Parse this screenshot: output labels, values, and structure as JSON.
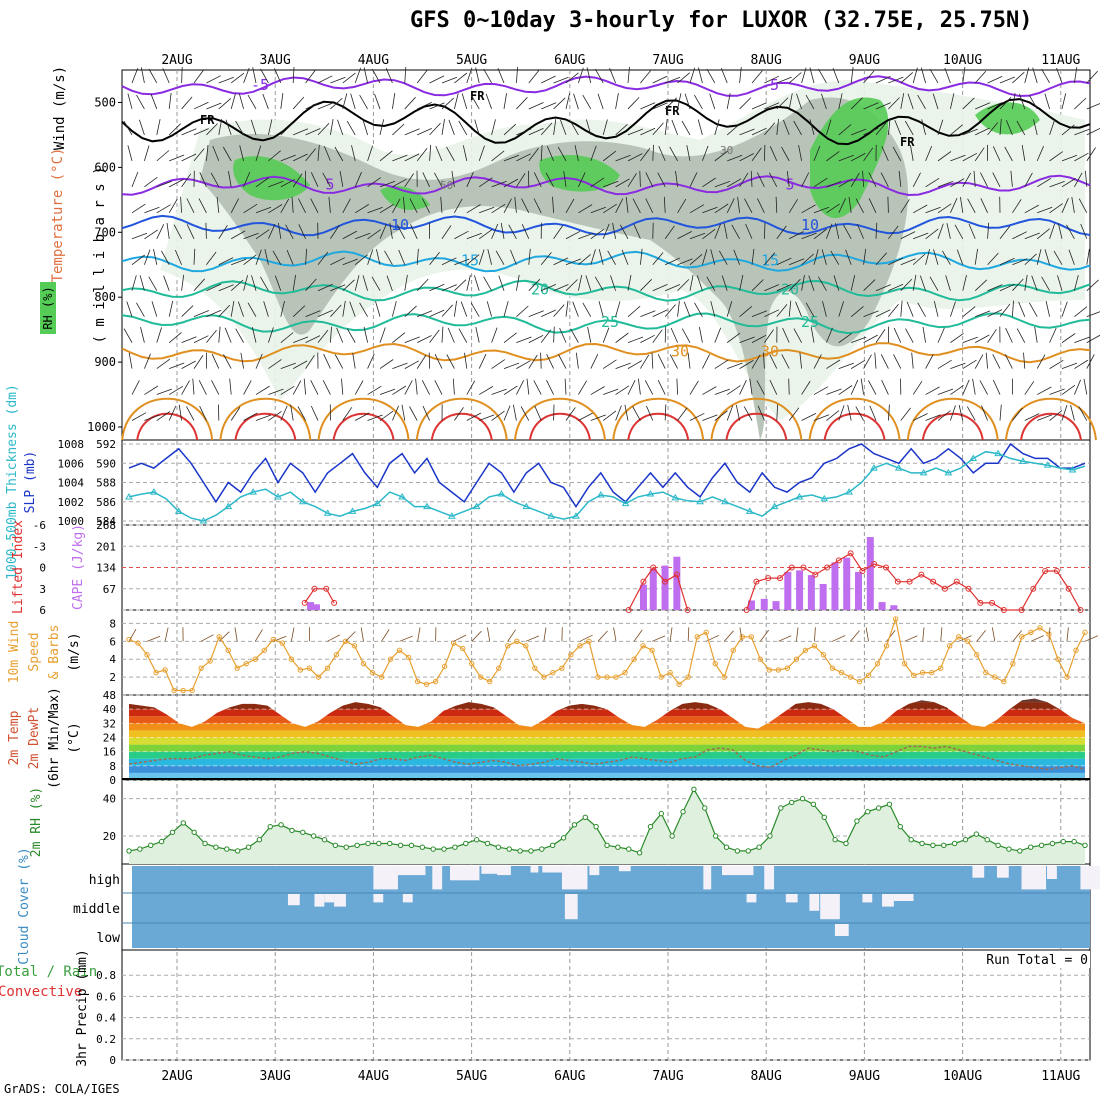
{
  "header": {
    "title": "GFS 0~10day 3-hourly for LUXOR (32.75E, 25.75N)"
  },
  "footer": {
    "credit": "GrADS: COLA/IGES"
  },
  "colors": {
    "rh_dark": "#55cc55",
    "rh_mid": "#b3bfb3",
    "rh_light": "#e8f3e8",
    "temp_purple": "#8a2be2",
    "temp_blue": "#2255dd",
    "temp_cyan": "#1fa8e0",
    "temp_teal": "#21bb99",
    "temp_orange": "#e09020",
    "temp_red": "#dd3333",
    "slp": "#1a35c8",
    "thickness": "#2bb8c8",
    "cape": "#bf6ef0",
    "lifted": "#e03030",
    "wind": "#e8a030",
    "rh2m": "#2a8a2a",
    "cloud": "#6aa9d6",
    "cloud_gap": "#eeeeee"
  },
  "chart_data": [
    {
      "id": "upper_air",
      "type": "heatmap",
      "title": "Wind (m/s) / Temperature (°C) / RH (%)",
      "ylabel_wind": "Wind (m/s)",
      "ylabel_temp": "Temperature (°C)",
      "ylabel_rh": "RH (%)",
      "ylabel_pres": "( m i l l i b a r s )",
      "xlabels": [
        "2AUG",
        "3AUG",
        "4AUG",
        "5AUG",
        "6AUG",
        "7AUG",
        "8AUG",
        "9AUG",
        "10AUG",
        "11AUG"
      ],
      "x_range_days": [
        0,
        10
      ],
      "y_ticks": [
        "500",
        "600",
        "700",
        "800",
        "900",
        "1000"
      ],
      "ylim": [
        450,
        1020
      ],
      "freezing_label": "FR",
      "rh_labels": [
        "30",
        "50"
      ],
      "isotherms": [
        {
          "label": "-5",
          "level": 475
        },
        {
          "label": "5",
          "level": 628
        },
        {
          "label": "10",
          "level": 690
        },
        {
          "label": "15",
          "level": 745
        },
        {
          "label": "20",
          "level": 790
        },
        {
          "label": "25",
          "level": 840
        },
        {
          "label": "30",
          "level": 885
        }
      ],
      "extra_labels": [
        "-5",
        "5",
        "10",
        "15",
        "20",
        "25",
        "30",
        "30"
      ]
    },
    {
      "id": "slp_thickness",
      "type": "line",
      "ylabel_left": "1000-500mb Thickness (dm)",
      "ylabel_right": "SLP (mb)",
      "left_ticks": [
        "592",
        "590",
        "588",
        "586",
        "584"
      ],
      "right_ticks": [
        "1008",
        "1006",
        "1004",
        "1002",
        "1000"
      ],
      "ylim_slp": [
        1000,
        1008
      ],
      "ylim_thickness": [
        584,
        592
      ],
      "series": [
        {
          "name": "SLP",
          "values": [
            1005.5,
            1006,
            1005.5,
            1006.5,
            1007.5,
            1006,
            1004,
            1002,
            1004,
            1003,
            1005,
            1006.5,
            1004,
            1006,
            1005,
            1003,
            1005,
            1006,
            1007,
            1005,
            1003.5,
            1006,
            1007,
            1005,
            1006.5,
            1004,
            1003,
            1002,
            1004,
            1006,
            1005,
            1003,
            1005,
            1006,
            1004,
            1003.5,
            1001.5,
            1003.5,
            1005,
            1003,
            1002,
            1003.5,
            1005,
            1003.5,
            1005,
            1003.5,
            1002.5,
            1004.5,
            1006,
            1004,
            1003,
            1005,
            1003.5,
            1003,
            1004,
            1004.5,
            1006,
            1006.5,
            1007.5,
            1008,
            1007,
            1006.5,
            1006,
            1007.5,
            1006,
            1006.5,
            1007.5,
            1006.5,
            1005,
            1006,
            1006,
            1008,
            1007,
            1006.5,
            1006.5,
            1005.5,
            1005.5,
            1006
          ]
        },
        {
          "name": "1000-500mb Thickness",
          "values": [
            586.5,
            586.8,
            587,
            586.3,
            585,
            584.3,
            584,
            584.6,
            585.5,
            586.5,
            587,
            587.3,
            586.5,
            587,
            586,
            585.5,
            584.8,
            584.5,
            585,
            585.3,
            585.8,
            587,
            586.5,
            585.5,
            585.5,
            585,
            584.5,
            585,
            585.5,
            586.5,
            586.8,
            586,
            585.5,
            585,
            584.5,
            584.2,
            584.5,
            586,
            586.7,
            586.5,
            585.8,
            586.5,
            586.8,
            587,
            586.4,
            586.1,
            586,
            586.5,
            586,
            585.5,
            585,
            584.5,
            585.5,
            586,
            586.5,
            586.7,
            586.3,
            586.5,
            587,
            588,
            589.5,
            590,
            589.5,
            589,
            589,
            589.5,
            589,
            589.5,
            590.5,
            591.2,
            591,
            590.5,
            590.2,
            590,
            589.8,
            589.5,
            589.3,
            589.7
          ]
        }
      ]
    },
    {
      "id": "lifted_cape",
      "type": "bar",
      "ylabel_left": "Lifted Index",
      "ylabel_right": "CAPE (J/kg)",
      "left_ticks": [
        "-6",
        "-3",
        "0",
        "3",
        "6"
      ],
      "right_ticks": [
        "268",
        "201",
        "134",
        "67"
      ],
      "ylim_lifted": [
        6,
        -6
      ],
      "ylim_cape": [
        0,
        268
      ],
      "cape_bars": [
        {
          "x": 1.36,
          "value": 25
        },
        {
          "x": 1.42,
          "value": 18
        },
        {
          "x": 4.75,
          "value": 80
        },
        {
          "x": 4.85,
          "value": 130
        },
        {
          "x": 4.97,
          "value": 140
        },
        {
          "x": 5.09,
          "value": 168
        },
        {
          "x": 5.85,
          "value": 30
        },
        {
          "x": 5.98,
          "value": 35
        },
        {
          "x": 6.1,
          "value": 28
        },
        {
          "x": 6.22,
          "value": 120
        },
        {
          "x": 6.34,
          "value": 125
        },
        {
          "x": 6.46,
          "value": 110
        },
        {
          "x": 6.58,
          "value": 82
        },
        {
          "x": 6.7,
          "value": 150
        },
        {
          "x": 6.82,
          "value": 165
        },
        {
          "x": 6.94,
          "value": 120
        },
        {
          "x": 7.06,
          "value": 230
        },
        {
          "x": 7.18,
          "value": 25
        },
        {
          "x": 7.3,
          "value": 15
        }
      ],
      "lifted_points": [
        {
          "x": 1.3,
          "value": 5
        },
        {
          "x": 1.4,
          "value": 3
        },
        {
          "x": 1.52,
          "value": 3
        },
        {
          "x": 1.6,
          "value": 5
        },
        {
          "x": 4.6,
          "value": 6
        },
        {
          "x": 4.75,
          "value": 2
        },
        {
          "x": 4.85,
          "value": 0
        },
        {
          "x": 4.97,
          "value": 2
        },
        {
          "x": 5.09,
          "value": 1
        },
        {
          "x": 5.2,
          "value": 6
        },
        {
          "x": 5.8,
          "value": 6
        },
        {
          "x": 5.9,
          "value": 2
        },
        {
          "x": 6.02,
          "value": 1.5
        },
        {
          "x": 6.14,
          "value": 1.5
        },
        {
          "x": 6.26,
          "value": 0
        },
        {
          "x": 6.38,
          "value": 0
        },
        {
          "x": 6.5,
          "value": 1
        },
        {
          "x": 6.62,
          "value": 0
        },
        {
          "x": 6.74,
          "value": -1
        },
        {
          "x": 6.86,
          "value": -2
        },
        {
          "x": 6.98,
          "value": 0.5
        },
        {
          "x": 7.1,
          "value": -0.5
        },
        {
          "x": 7.22,
          "value": 0
        },
        {
          "x": 7.34,
          "value": 2
        },
        {
          "x": 7.46,
          "value": 2
        },
        {
          "x": 7.58,
          "value": 1
        },
        {
          "x": 7.7,
          "value": 2
        },
        {
          "x": 7.82,
          "value": 3
        },
        {
          "x": 7.94,
          "value": 2
        },
        {
          "x": 8.06,
          "value": 3
        },
        {
          "x": 8.18,
          "value": 5
        },
        {
          "x": 8.3,
          "value": 5
        },
        {
          "x": 8.42,
          "value": 6
        },
        {
          "x": 8.6,
          "value": 6
        },
        {
          "x": 8.72,
          "value": 3
        },
        {
          "x": 8.84,
          "value": 0.5
        },
        {
          "x": 8.96,
          "value": 0.5
        },
        {
          "x": 9.08,
          "value": 3
        },
        {
          "x": 9.2,
          "value": 6
        }
      ]
    },
    {
      "id": "wind10m",
      "type": "line",
      "ylabel": "10m Wind Speed & Barbs (m/s)",
      "ylabel_parts": [
        "10m Wind",
        "Speed",
        "& Barbs",
        "(m/s)"
      ],
      "y_ticks": [
        "8",
        "6",
        "4",
        "2"
      ],
      "ylim": [
        0,
        9.5
      ],
      "values": [
        6.2,
        5.8,
        4.5,
        2.5,
        2.8,
        0.5,
        0.5,
        0.5,
        3,
        3.8,
        6.5,
        5,
        3,
        3.5,
        4,
        5,
        6.2,
        5.8,
        4,
        2.8,
        3,
        2,
        3,
        4.5,
        6,
        5.5,
        3.5,
        2.5,
        2,
        4,
        5,
        4.2,
        1.5,
        1.2,
        1.5,
        3.2,
        5.8,
        5.2,
        3.5,
        2,
        1.5,
        3,
        5.5,
        6,
        5.5,
        3,
        2,
        2.5,
        3,
        4.5,
        5.5,
        6,
        2,
        2,
        2,
        2.5,
        4,
        5.5,
        5,
        2,
        2.5,
        1.2,
        2,
        6.5,
        7,
        3.5,
        2,
        5,
        6.5,
        6.5,
        4,
        2.8,
        2.8,
        3,
        4,
        5,
        5.5,
        4.5,
        3,
        2.5,
        2,
        1.5,
        2.2,
        3.5,
        5.5,
        8.5,
        3.5,
        2.2,
        2.5,
        2.5,
        3,
        5.5,
        6.5,
        6,
        4.5,
        2.5,
        2,
        1.5,
        3.5,
        6.5,
        7,
        7.5,
        6.8,
        4,
        2,
        5,
        7
      ]
    },
    {
      "id": "temp2m",
      "type": "area",
      "ylabel": "2m Temp / 2m DewPt (6hr Min/Max) (°C)",
      "ylabel_parts": [
        "2m Temp",
        "2m DewPt",
        "(6hr Min/Max)",
        "(°C)"
      ],
      "y_ticks": [
        "48",
        "40",
        "32",
        "24",
        "16",
        "8",
        "0"
      ],
      "ylim": [
        0,
        48
      ],
      "temp_values": [
        43,
        42,
        41,
        37,
        32,
        30,
        33,
        38,
        41,
        43,
        43,
        42,
        37,
        32,
        30,
        33,
        38,
        42,
        44,
        43,
        41,
        36,
        31,
        30,
        33,
        39,
        42,
        44,
        43,
        41,
        36,
        31,
        30,
        34,
        39,
        42,
        43,
        42,
        40,
        35,
        31,
        30,
        34,
        39,
        43,
        44,
        43,
        40,
        35,
        30,
        29,
        33,
        38,
        43,
        44,
        43,
        40,
        35,
        30,
        30,
        33,
        39,
        43,
        45,
        44,
        41,
        36,
        31,
        30,
        34,
        40,
        45,
        46,
        44,
        40,
        35,
        32
      ],
      "dew_values": [
        9,
        10,
        11,
        12,
        12,
        12,
        14,
        15,
        16,
        14,
        13,
        12,
        13,
        15,
        16,
        15,
        13,
        11,
        9,
        10,
        12,
        12,
        11,
        13,
        14,
        12,
        10,
        9,
        10,
        11,
        10,
        8,
        9,
        10,
        12,
        11,
        10,
        9,
        10,
        11,
        13,
        12,
        11,
        10,
        12,
        13,
        17,
        18,
        17,
        11,
        8,
        7,
        11,
        14,
        18,
        17,
        16,
        17,
        16,
        14,
        13,
        16,
        19,
        19,
        18,
        19,
        17,
        15,
        13,
        11,
        9,
        8,
        7,
        6,
        7,
        8,
        6
      ]
    },
    {
      "id": "rh2m",
      "type": "area",
      "ylabel": "2m RH (%)",
      "y_ticks": [
        "40",
        "20"
      ],
      "ylim": [
        5,
        50
      ],
      "values": [
        12,
        13,
        15,
        17,
        22,
        27,
        22,
        16,
        14,
        13,
        12,
        14,
        18,
        25,
        26,
        23,
        22,
        20,
        18,
        15,
        14,
        15,
        16,
        16,
        16,
        15,
        15,
        14,
        13,
        13,
        14,
        16,
        18,
        16,
        14,
        13,
        12,
        12,
        13,
        15,
        19,
        26,
        30,
        25,
        15,
        14,
        13,
        11,
        25,
        32,
        20,
        33,
        45,
        35,
        20,
        14,
        12,
        12,
        14,
        20,
        35,
        38,
        40,
        37,
        30,
        18,
        16,
        28,
        33,
        35,
        37,
        25,
        18,
        16,
        15,
        15,
        16,
        18,
        21,
        18,
        15,
        13,
        12,
        14,
        15,
        16,
        17,
        17,
        15
      ]
    },
    {
      "id": "cloud",
      "type": "bar",
      "ylabel": "Cloud Cover (%)",
      "levels": [
        "high",
        "middle",
        "low"
      ],
      "high_gaps": [
        {
          "x": 2.0,
          "width": 0.25,
          "depth": 0.9
        },
        {
          "x": 2.25,
          "width": 0.28,
          "depth": 0.35
        },
        {
          "x": 2.6,
          "width": 0.1,
          "depth": 0.9
        },
        {
          "x": 2.78,
          "width": 0.3,
          "depth": 0.55
        },
        {
          "x": 3.1,
          "width": 0.18,
          "depth": 0.3
        },
        {
          "x": 3.26,
          "width": 0.14,
          "depth": 0.35
        },
        {
          "x": 3.6,
          "width": 0.08,
          "depth": 0.25
        },
        {
          "x": 3.72,
          "width": 0.2,
          "depth": 0.25
        },
        {
          "x": 3.92,
          "width": 0.26,
          "depth": 0.9
        },
        {
          "x": 4.2,
          "width": 0.1,
          "depth": 0.35
        },
        {
          "x": 4.5,
          "width": 0.12,
          "depth": 0.2
        },
        {
          "x": 5.36,
          "width": 0.08,
          "depth": 0.9
        },
        {
          "x": 5.55,
          "width": 0.32,
          "depth": 0.35
        },
        {
          "x": 5.98,
          "width": 0.1,
          "depth": 0.9
        },
        {
          "x": 8.1,
          "width": 0.12,
          "depth": 0.45
        },
        {
          "x": 8.35,
          "width": 0.12,
          "depth": 0.45
        },
        {
          "x": 8.6,
          "width": 0.25,
          "depth": 0.9
        },
        {
          "x": 8.86,
          "width": 0.1,
          "depth": 0.5
        },
        {
          "x": 9.2,
          "width": 0.32,
          "depth": 0.9
        }
      ],
      "mid_gaps": [
        {
          "x": 1.13,
          "width": 0.12,
          "depth": 0.4
        },
        {
          "x": 1.4,
          "width": 0.1,
          "depth": 0.45
        },
        {
          "x": 1.5,
          "width": 0.1,
          "depth": 0.3
        },
        {
          "x": 1.6,
          "width": 0.12,
          "depth": 0.45
        },
        {
          "x": 2.0,
          "width": 0.1,
          "depth": 0.3
        },
        {
          "x": 2.3,
          "width": 0.1,
          "depth": 0.3
        },
        {
          "x": 3.95,
          "width": 0.13,
          "depth": 0.9
        },
        {
          "x": 5.8,
          "width": 0.1,
          "depth": 0.3
        },
        {
          "x": 6.2,
          "width": 0.12,
          "depth": 0.3
        },
        {
          "x": 6.44,
          "width": 0.1,
          "depth": 0.6
        },
        {
          "x": 6.55,
          "width": 0.2,
          "depth": 0.9
        },
        {
          "x": 6.98,
          "width": 0.1,
          "depth": 0.3
        },
        {
          "x": 7.18,
          "width": 0.12,
          "depth": 0.45
        },
        {
          "x": 7.3,
          "width": 0.2,
          "depth": 0.25
        }
      ],
      "low_gaps": [
        {
          "x": 6.7,
          "width": 0.14,
          "depth": 0.5
        }
      ]
    },
    {
      "id": "precip",
      "type": "line",
      "ylabel_left": "Total / Rain",
      "ylabel_left2": "Convective",
      "ylabel": "3hr Precip (mm)",
      "y_ticks": [
        "0.8",
        "0.6",
        "0.4",
        "0.2",
        "0"
      ],
      "ylim": [
        0,
        1.0
      ],
      "run_total": "Run Total = 0",
      "values": []
    }
  ]
}
